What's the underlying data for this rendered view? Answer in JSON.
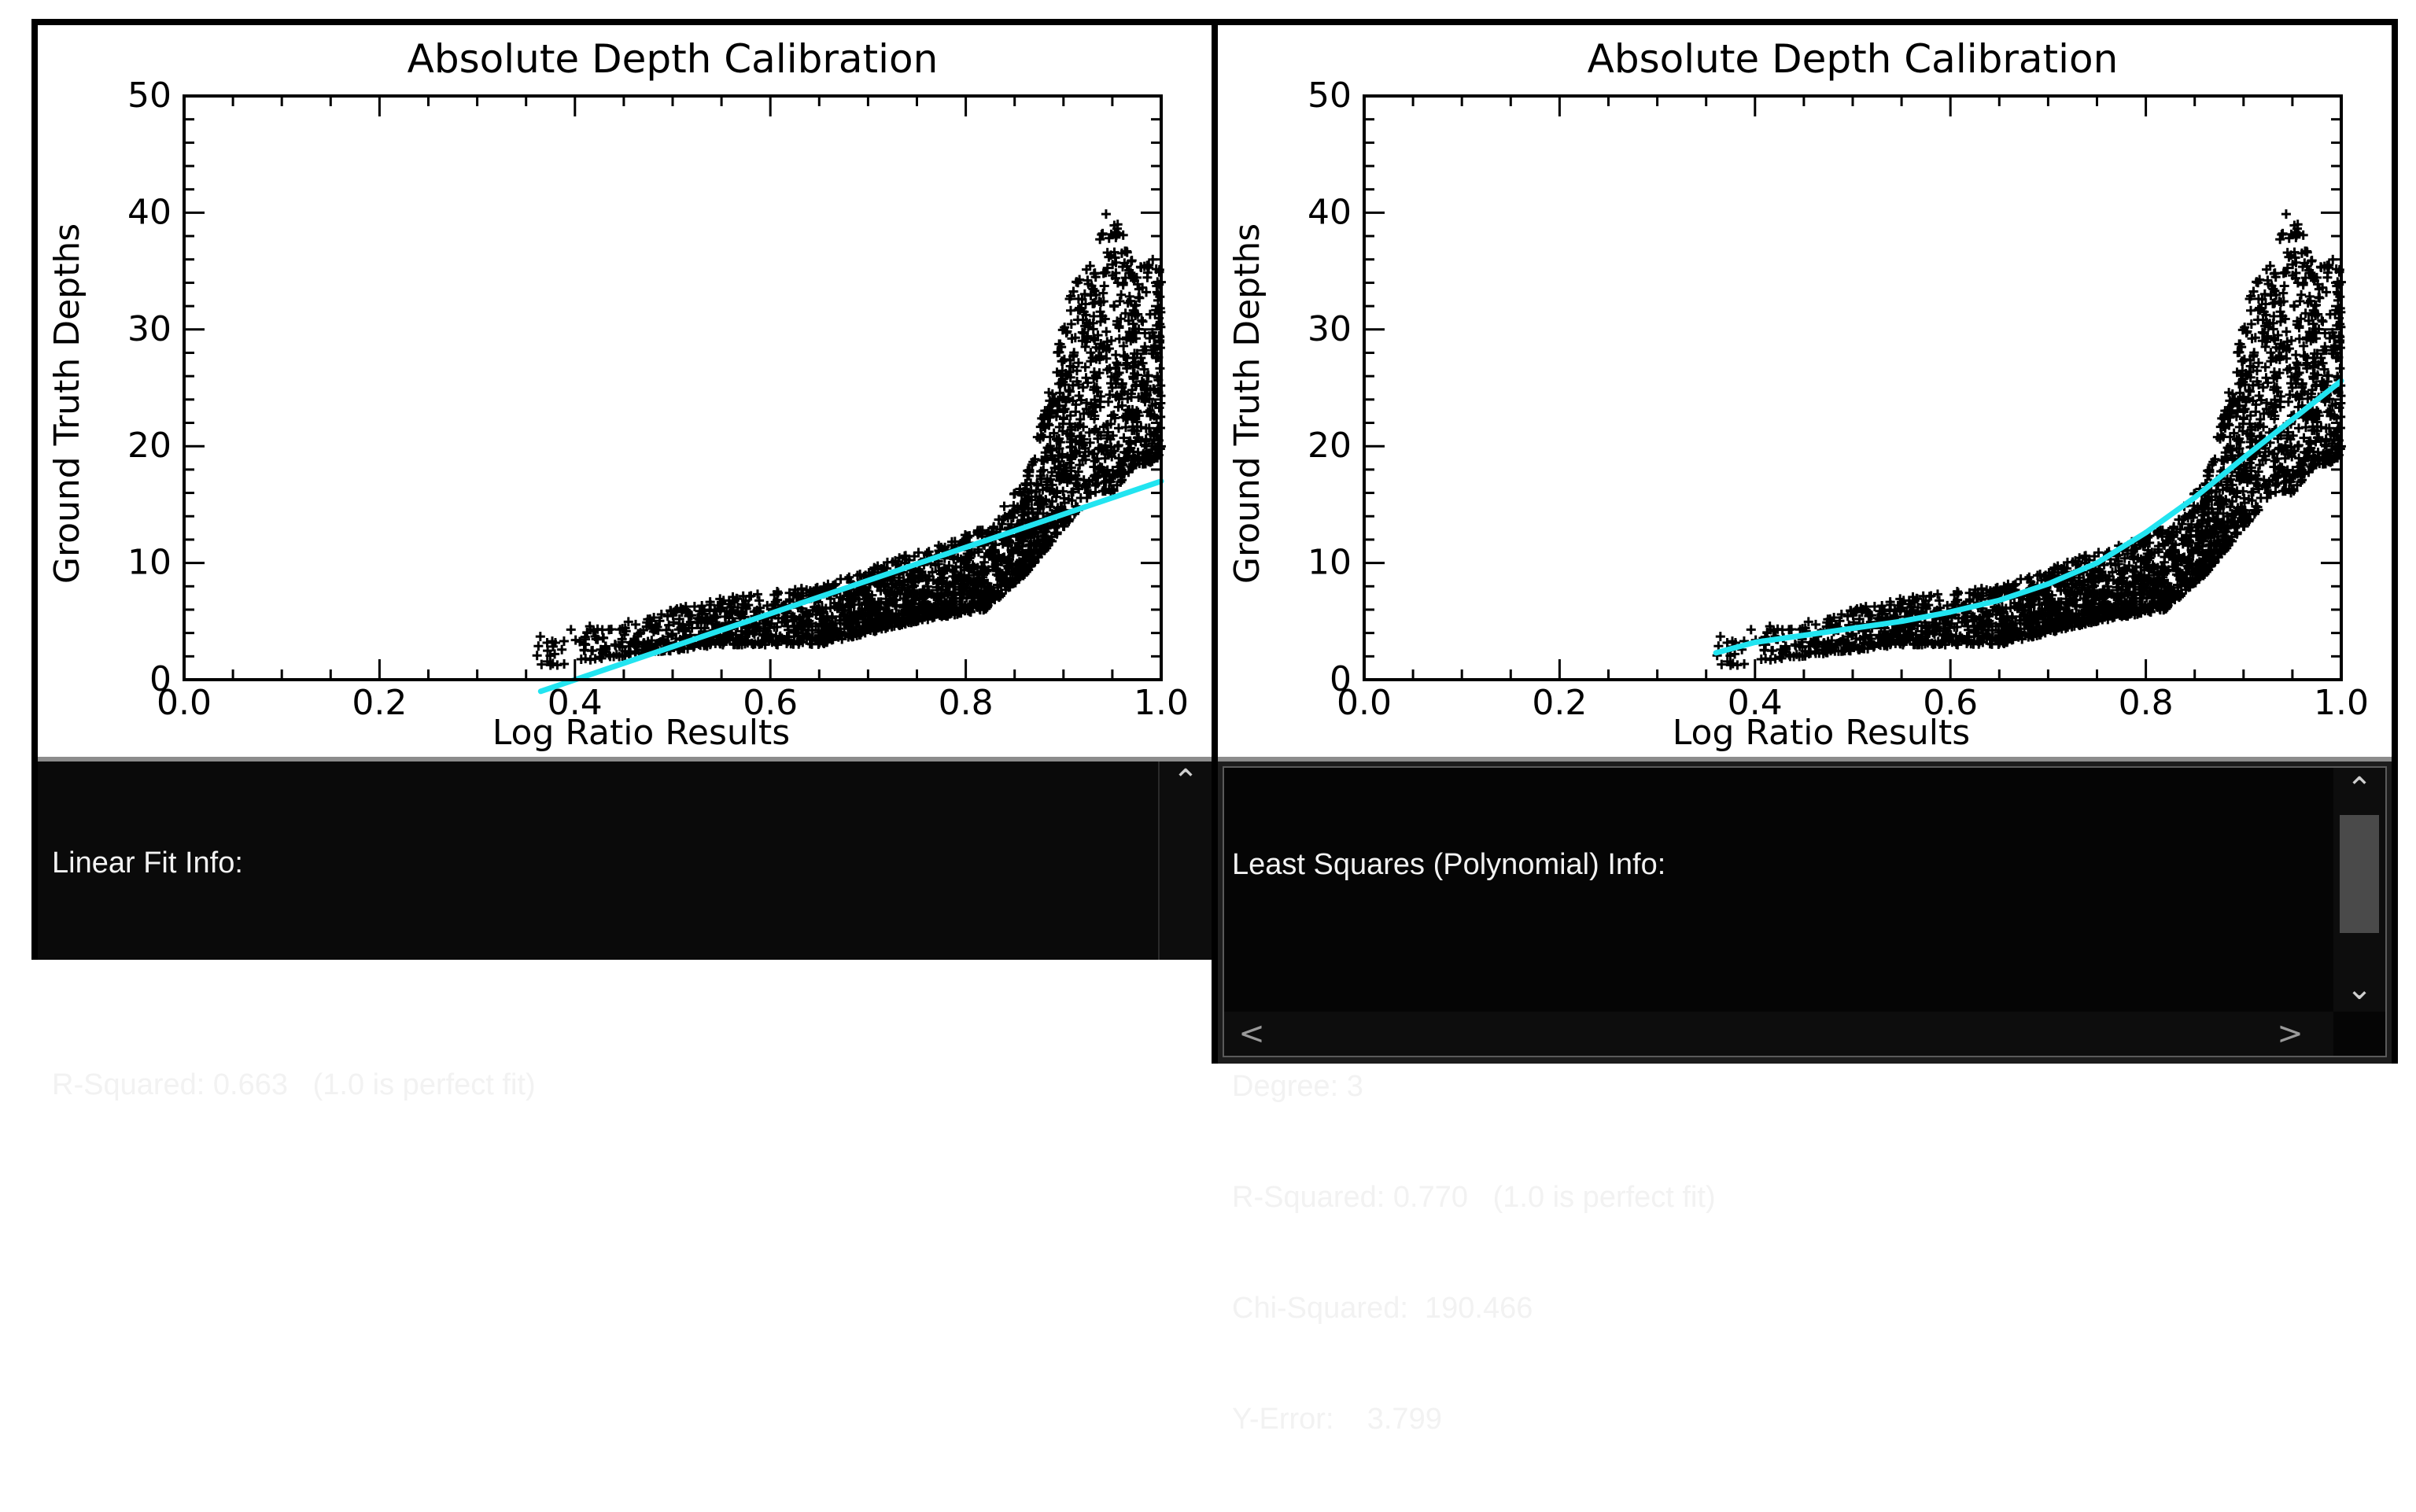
{
  "left": {
    "info": {
      "lines": [
        "Linear Fit Info:",
        "",
        "R-Squared: 0.663   (1.0 is perfect fit)"
      ],
      "scroll_up_icon": "chevron-up-icon"
    }
  },
  "right": {
    "info": {
      "lines": [
        "Least Squares (Polynomial) Info:",
        "",
        "Degree: 3",
        "R-Squared: 0.770   (1.0 is perfect fit)",
        "Chi-Squared:  190.466",
        "Y-Error:    3.799"
      ],
      "scroll_up_icon": "chevron-up-icon",
      "scroll_down_icon": "chevron-down-icon",
      "scroll_left_icon": "chevron-left-icon",
      "scroll_right_icon": "chevron-right-icon"
    }
  },
  "colors": {
    "fit_line": "#22e4f0",
    "points": "#000000",
    "background": "#ffffff",
    "info_bg": "#0a0a0a",
    "info_text": "#f2f2f2"
  },
  "chart_data": [
    {
      "type": "scatter",
      "title": "Absolute Depth Calibration",
      "xlabel": "Log Ratio Results",
      "ylabel": "Ground Truth Depths",
      "xlim": [
        0.0,
        1.0
      ],
      "ylim": [
        0,
        50
      ],
      "xticks": [
        "0.0",
        "0.2",
        "0.4",
        "0.6",
        "0.8",
        "1.0"
      ],
      "yticks": [
        "0",
        "10",
        "20",
        "30",
        "40",
        "50"
      ],
      "grid": false,
      "marker": "+",
      "scatter_envelope": {
        "x": [
          0.36,
          0.45,
          0.55,
          0.65,
          0.75,
          0.82,
          0.86,
          0.89,
          0.91,
          0.93,
          0.95,
          0.97,
          1.0
        ],
        "low": [
          1,
          2,
          3,
          3,
          5,
          6,
          9,
          12,
          14,
          16,
          16,
          18,
          19
        ],
        "high": [
          4,
          5,
          7,
          8,
          11,
          13,
          17,
          27,
          34,
          36,
          42,
          36,
          36
        ]
      },
      "fit": {
        "name": "Linear Fit",
        "x": [
          0.365,
          1.0
        ],
        "y": [
          -1.0,
          17.0
        ]
      }
    },
    {
      "type": "scatter",
      "title": "Absolute Depth Calibration",
      "xlabel": "Log Ratio Results",
      "ylabel": "Ground Truth Depths",
      "xlim": [
        0.0,
        1.0
      ],
      "ylim": [
        0,
        50
      ],
      "xticks": [
        "0.0",
        "0.2",
        "0.4",
        "0.6",
        "0.8",
        "1.0"
      ],
      "yticks": [
        "0",
        "10",
        "20",
        "30",
        "40",
        "50"
      ],
      "grid": false,
      "marker": "+",
      "scatter_envelope": {
        "x": [
          0.36,
          0.45,
          0.55,
          0.65,
          0.75,
          0.82,
          0.86,
          0.89,
          0.91,
          0.93,
          0.95,
          0.97,
          1.0
        ],
        "low": [
          1,
          2,
          3,
          3,
          5,
          6,
          9,
          12,
          14,
          16,
          16,
          18,
          19
        ],
        "high": [
          4,
          5,
          7,
          8,
          11,
          13,
          17,
          27,
          34,
          36,
          42,
          36,
          36
        ]
      },
      "fit": {
        "name": "Polynomial Fit (Degree 3)",
        "x": [
          0.36,
          0.4,
          0.45,
          0.5,
          0.55,
          0.6,
          0.65,
          0.7,
          0.75,
          0.8,
          0.85,
          0.9,
          0.95,
          1.0
        ],
        "y": [
          2.3,
          3.2,
          3.8,
          4.4,
          5.0,
          5.8,
          6.8,
          8.2,
          10.0,
          12.6,
          15.6,
          19.0,
          22.3,
          25.6
        ]
      }
    }
  ]
}
